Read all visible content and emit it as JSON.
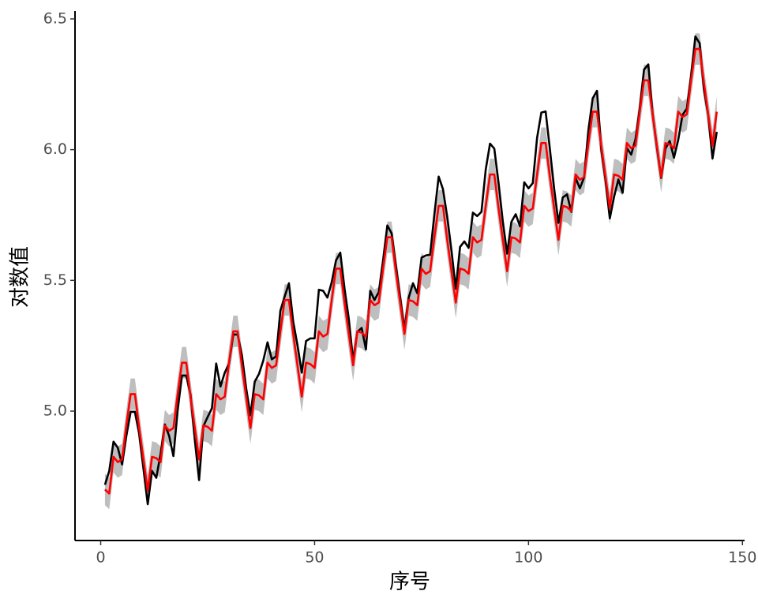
{
  "chart_data": {
    "type": "line",
    "x_label": "序号",
    "y_label": "对数值",
    "x": [
      1,
      2,
      3,
      4,
      5,
      6,
      7,
      8,
      9,
      10,
      11,
      12,
      13,
      14,
      15,
      16,
      17,
      18,
      19,
      20,
      21,
      22,
      23,
      24,
      25,
      26,
      27,
      28,
      29,
      30,
      31,
      32,
      33,
      34,
      35,
      36,
      37,
      38,
      39,
      40,
      41,
      42,
      43,
      44,
      45,
      46,
      47,
      48,
      49,
      50,
      51,
      52,
      53,
      54,
      55,
      56,
      57,
      58,
      59,
      60,
      61,
      62,
      63,
      64,
      65,
      66,
      67,
      68,
      69,
      70,
      71,
      72,
      73,
      74,
      75,
      76,
      77,
      78,
      79,
      80,
      81,
      82,
      83,
      84,
      85,
      86,
      87,
      88,
      89,
      90,
      91,
      92,
      93,
      94,
      95,
      96,
      97,
      98,
      99,
      100,
      101,
      102,
      103,
      104,
      105,
      106,
      107,
      108,
      109,
      110,
      111,
      112,
      113,
      114,
      115,
      116,
      117,
      118,
      119,
      120,
      121,
      122,
      123,
      124,
      125,
      126,
      127,
      128,
      129,
      130,
      131,
      132,
      133,
      134,
      135,
      136,
      137,
      138,
      139,
      140,
      141,
      142,
      143,
      144
    ],
    "series": [
      {
        "color": "#000000",
        "values": [
          4.718,
          4.771,
          4.883,
          4.86,
          4.796,
          4.905,
          4.997,
          4.997,
          4.913,
          4.779,
          4.644,
          4.771,
          4.745,
          4.836,
          4.949,
          4.905,
          4.828,
          5.004,
          5.136,
          5.136,
          5.063,
          4.89,
          4.736,
          4.942,
          4.977,
          5.011,
          5.182,
          5.094,
          5.147,
          5.182,
          5.293,
          5.293,
          5.215,
          5.088,
          4.984,
          5.112,
          5.142,
          5.193,
          5.263,
          5.198,
          5.209,
          5.384,
          5.438,
          5.489,
          5.342,
          5.252,
          5.147,
          5.268,
          5.278,
          5.278,
          5.464,
          5.46,
          5.434,
          5.493,
          5.576,
          5.606,
          5.468,
          5.352,
          5.193,
          5.303,
          5.318,
          5.236,
          5.46,
          5.425,
          5.455,
          5.576,
          5.71,
          5.68,
          5.557,
          5.434,
          5.313,
          5.434,
          5.489,
          5.451,
          5.587,
          5.595,
          5.598,
          5.753,
          5.897,
          5.849,
          5.743,
          5.613,
          5.468,
          5.628,
          5.649,
          5.624,
          5.759,
          5.746,
          5.762,
          5.924,
          6.023,
          6.004,
          5.872,
          5.724,
          5.602,
          5.724,
          5.753,
          5.707,
          5.875,
          5.852,
          5.872,
          6.045,
          6.142,
          6.146,
          6.001,
          5.849,
          5.72,
          5.817,
          5.829,
          5.762,
          5.892,
          5.852,
          5.894,
          6.075,
          6.196,
          6.225,
          6.001,
          5.883,
          5.737,
          5.82,
          5.886,
          5.835,
          6.006,
          5.981,
          6.04,
          6.157,
          6.306,
          6.326,
          6.138,
          6.009,
          5.892,
          6.004,
          6.033,
          5.969,
          6.038,
          6.133,
          6.157,
          6.282,
          6.433,
          6.407,
          6.23,
          6.133,
          5.966,
          6.068
        ]
      },
      {
        "color": "#ff0000",
        "values": [
          4.7,
          4.685,
          4.825,
          4.805,
          4.815,
          4.945,
          5.065,
          5.065,
          4.935,
          4.815,
          4.695,
          4.825,
          4.82,
          4.805,
          4.945,
          4.925,
          4.935,
          5.065,
          5.185,
          5.185,
          5.055,
          4.935,
          4.815,
          4.945,
          4.94,
          4.925,
          5.065,
          5.045,
          5.055,
          5.185,
          5.305,
          5.305,
          5.175,
          5.055,
          4.935,
          5.065,
          5.06,
          5.045,
          5.185,
          5.165,
          5.175,
          5.305,
          5.425,
          5.425,
          5.295,
          5.175,
          5.055,
          5.185,
          5.18,
          5.165,
          5.305,
          5.285,
          5.295,
          5.425,
          5.545,
          5.545,
          5.415,
          5.295,
          5.175,
          5.305,
          5.3,
          5.285,
          5.425,
          5.405,
          5.415,
          5.545,
          5.665,
          5.665,
          5.535,
          5.415,
          5.295,
          5.425,
          5.42,
          5.405,
          5.545,
          5.525,
          5.535,
          5.665,
          5.785,
          5.785,
          5.655,
          5.535,
          5.415,
          5.545,
          5.54,
          5.525,
          5.665,
          5.645,
          5.655,
          5.785,
          5.905,
          5.905,
          5.775,
          5.655,
          5.535,
          5.665,
          5.66,
          5.645,
          5.785,
          5.765,
          5.775,
          5.905,
          6.025,
          6.025,
          5.895,
          5.775,
          5.655,
          5.785,
          5.78,
          5.765,
          5.905,
          5.885,
          5.895,
          6.025,
          6.145,
          6.145,
          6.015,
          5.895,
          5.775,
          5.905,
          5.9,
          5.885,
          6.025,
          6.005,
          6.015,
          6.145,
          6.265,
          6.265,
          6.135,
          6.015,
          5.895,
          6.025,
          6.02,
          6.005,
          6.145,
          6.125,
          6.135,
          6.265,
          6.385,
          6.385,
          6.255,
          6.135,
          6.015,
          6.145
        ]
      }
    ],
    "band": {
      "color": "#bebebe",
      "lower": [
        4.64,
        4.625,
        4.765,
        4.745,
        4.755,
        4.885,
        5.005,
        5.005,
        4.875,
        4.755,
        4.635,
        4.765,
        4.76,
        4.745,
        4.885,
        4.865,
        4.875,
        5.005,
        5.125,
        5.125,
        4.995,
        4.875,
        4.755,
        4.885,
        4.88,
        4.865,
        5.005,
        4.985,
        4.995,
        5.125,
        5.245,
        5.245,
        5.115,
        4.995,
        4.875,
        5.005,
        5.0,
        4.985,
        5.125,
        5.105,
        5.115,
        5.245,
        5.365,
        5.365,
        5.235,
        5.115,
        4.995,
        5.125,
        5.12,
        5.105,
        5.245,
        5.225,
        5.235,
        5.365,
        5.485,
        5.485,
        5.355,
        5.235,
        5.115,
        5.245,
        5.24,
        5.225,
        5.365,
        5.345,
        5.355,
        5.485,
        5.605,
        5.605,
        5.475,
        5.355,
        5.235,
        5.365,
        5.36,
        5.345,
        5.485,
        5.465,
        5.475,
        5.605,
        5.725,
        5.725,
        5.595,
        5.475,
        5.355,
        5.485,
        5.48,
        5.465,
        5.605,
        5.585,
        5.595,
        5.725,
        5.845,
        5.845,
        5.715,
        5.595,
        5.475,
        5.605,
        5.6,
        5.585,
        5.725,
        5.705,
        5.715,
        5.845,
        5.965,
        5.965,
        5.835,
        5.715,
        5.595,
        5.725,
        5.72,
        5.705,
        5.845,
        5.825,
        5.835,
        5.965,
        6.085,
        6.085,
        5.955,
        5.835,
        5.715,
        5.845,
        5.84,
        5.825,
        5.965,
        5.945,
        5.955,
        6.085,
        6.205,
        6.205,
        6.075,
        5.955,
        5.835,
        5.965,
        5.96,
        5.945,
        6.085,
        6.065,
        6.075,
        6.205,
        6.325,
        6.325,
        6.195,
        6.075,
        5.955,
        6.085
      ],
      "upper": [
        4.76,
        4.745,
        4.885,
        4.865,
        4.875,
        5.005,
        5.125,
        5.125,
        4.995,
        4.875,
        4.755,
        4.885,
        4.88,
        4.865,
        5.005,
        4.985,
        4.995,
        5.125,
        5.245,
        5.245,
        5.115,
        4.995,
        4.875,
        5.005,
        5.0,
        4.985,
        5.125,
        5.105,
        5.115,
        5.245,
        5.365,
        5.365,
        5.235,
        5.115,
        4.995,
        5.125,
        5.12,
        5.105,
        5.245,
        5.225,
        5.235,
        5.365,
        5.485,
        5.485,
        5.355,
        5.235,
        5.115,
        5.245,
        5.24,
        5.225,
        5.365,
        5.345,
        5.355,
        5.485,
        5.605,
        5.605,
        5.475,
        5.355,
        5.235,
        5.365,
        5.36,
        5.345,
        5.485,
        5.465,
        5.475,
        5.605,
        5.725,
        5.725,
        5.595,
        5.475,
        5.355,
        5.485,
        5.48,
        5.465,
        5.605,
        5.585,
        5.595,
        5.725,
        5.845,
        5.845,
        5.715,
        5.595,
        5.475,
        5.605,
        5.6,
        5.585,
        5.725,
        5.705,
        5.715,
        5.845,
        5.965,
        5.965,
        5.835,
        5.715,
        5.595,
        5.725,
        5.72,
        5.705,
        5.845,
        5.825,
        5.835,
        5.965,
        6.085,
        6.085,
        5.955,
        5.835,
        5.715,
        5.845,
        5.84,
        5.825,
        5.965,
        5.945,
        5.955,
        6.085,
        6.205,
        6.205,
        6.075,
        5.955,
        5.835,
        5.965,
        5.96,
        5.945,
        6.085,
        6.065,
        6.075,
        6.205,
        6.325,
        6.325,
        6.195,
        6.075,
        5.955,
        6.085,
        6.08,
        6.065,
        6.205,
        6.185,
        6.195,
        6.325,
        6.445,
        6.445,
        6.315,
        6.195,
        6.075,
        6.205
      ]
    },
    "xlim": [
      -6,
      150.5
    ],
    "ylim": [
      4.505,
      6.518
    ],
    "xticks": [
      0,
      50,
      100,
      150
    ],
    "yticks": [
      {
        "value": 5.0,
        "label": "5.0"
      },
      {
        "value": 5.5,
        "label": "5.5"
      },
      {
        "value": 6.0,
        "label": "6.0"
      },
      {
        "value": 6.5,
        "label": "6.5"
      }
    ],
    "grid": false
  }
}
